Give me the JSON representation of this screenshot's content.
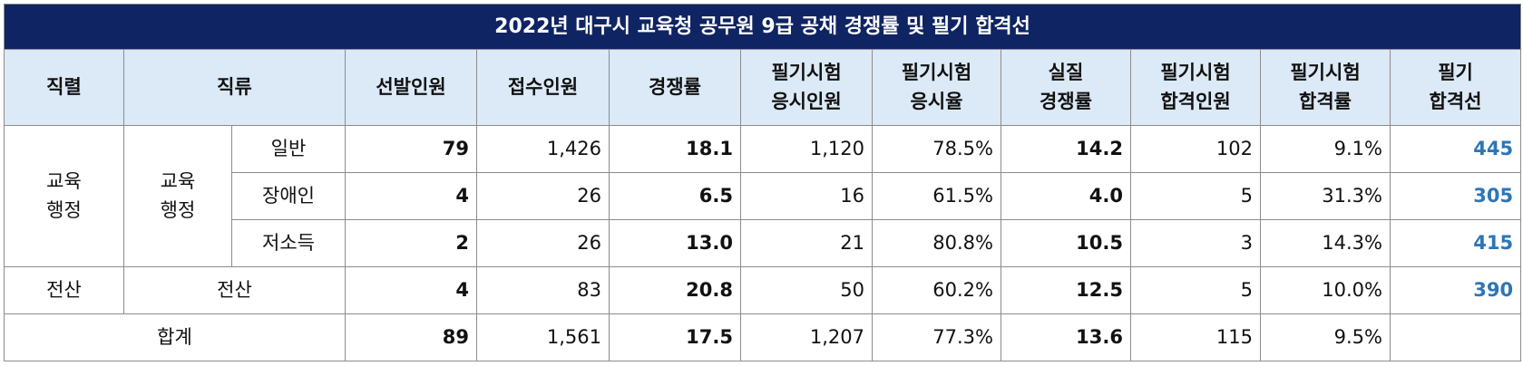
{
  "title": "2022년 대구시 교육청 공무원 9급 공채 경쟁률 및 필기 합격선",
  "table": {
    "header": [
      "직렬",
      "직류",
      "선발인원",
      "접수인원",
      "경쟁률",
      "필기시험\n응시인원",
      "필기시험\n응시율",
      "실질\n경쟁률",
      "필기시험\n합격인원",
      "필기시험\n합격률",
      "필기\n합격선"
    ],
    "rows": [
      [
        "교육\n행정",
        "교육\n행정",
        "일반",
        "79",
        "1,426",
        "18.1",
        "1,120",
        "78.5%",
        "14.2",
        "102",
        "9.1%",
        "445"
      ],
      [
        "장애인",
        "4",
        "26",
        "6.5",
        "16",
        "61.5%",
        "4.0",
        "5",
        "31.3%",
        "305"
      ],
      [
        "저소득",
        "2",
        "26",
        "13.0",
        "21",
        "80.8%",
        "10.5",
        "3",
        "14.3%",
        "415"
      ],
      [
        "전산",
        "전산",
        "4",
        "83",
        "20.8",
        "50",
        "60.2%",
        "12.5",
        "5",
        "10.0%",
        "390"
      ],
      [
        "합계",
        "89",
        "1,561",
        "17.5",
        "1,207",
        "77.3%",
        "13.6",
        "115",
        "9.5%"
      ]
    ]
  }
}
